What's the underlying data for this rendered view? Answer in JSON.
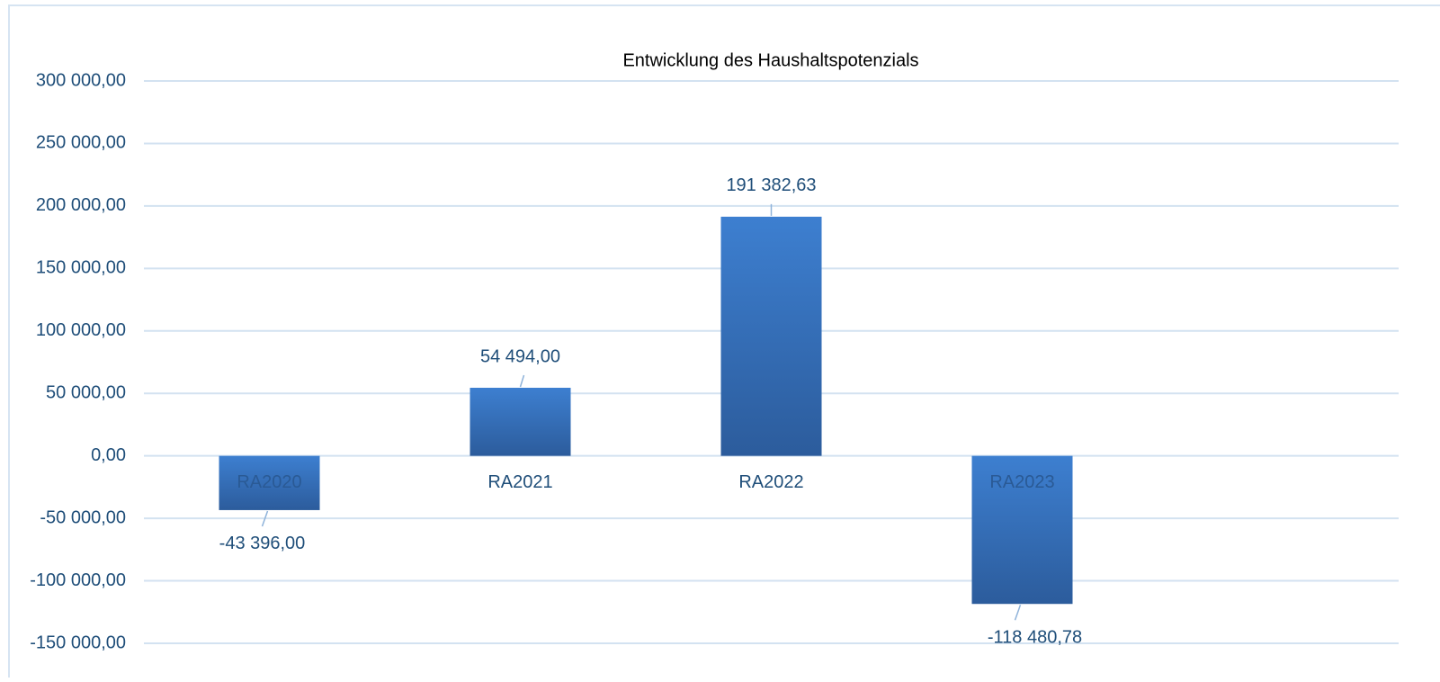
{
  "chart_data": {
    "type": "bar",
    "title": "Entwicklung des Haushaltspotenzials",
    "categories": [
      "RA2020",
      "RA2021",
      "RA2022",
      "RA2023",
      null
    ],
    "values": [
      -43396,
      54494,
      191382.63,
      -118480.78,
      null
    ],
    "value_labels": [
      "-43 396,00",
      "54 494,00",
      "191 382,63",
      "-118 480,78",
      null
    ],
    "color": "#3a76c4",
    "ylim": [
      -150000,
      300000
    ],
    "yticks": [
      {
        "value": -150000,
        "label": "-150 000,00"
      },
      {
        "value": -100000,
        "label": "-100 000,00"
      },
      {
        "value": -50000,
        "label": "-50 000,00"
      },
      {
        "value": 0,
        "label": "0,00"
      },
      {
        "value": 50000,
        "label": "50 000,00"
      },
      {
        "value": 100000,
        "label": "100 000,00"
      },
      {
        "value": 150000,
        "label": "150 000,00"
      },
      {
        "value": 200000,
        "label": "200 000,00"
      },
      {
        "value": 250000,
        "label": "250 000,00"
      },
      {
        "value": 300000,
        "label": "300 000,00"
      }
    ],
    "grid": true
  }
}
